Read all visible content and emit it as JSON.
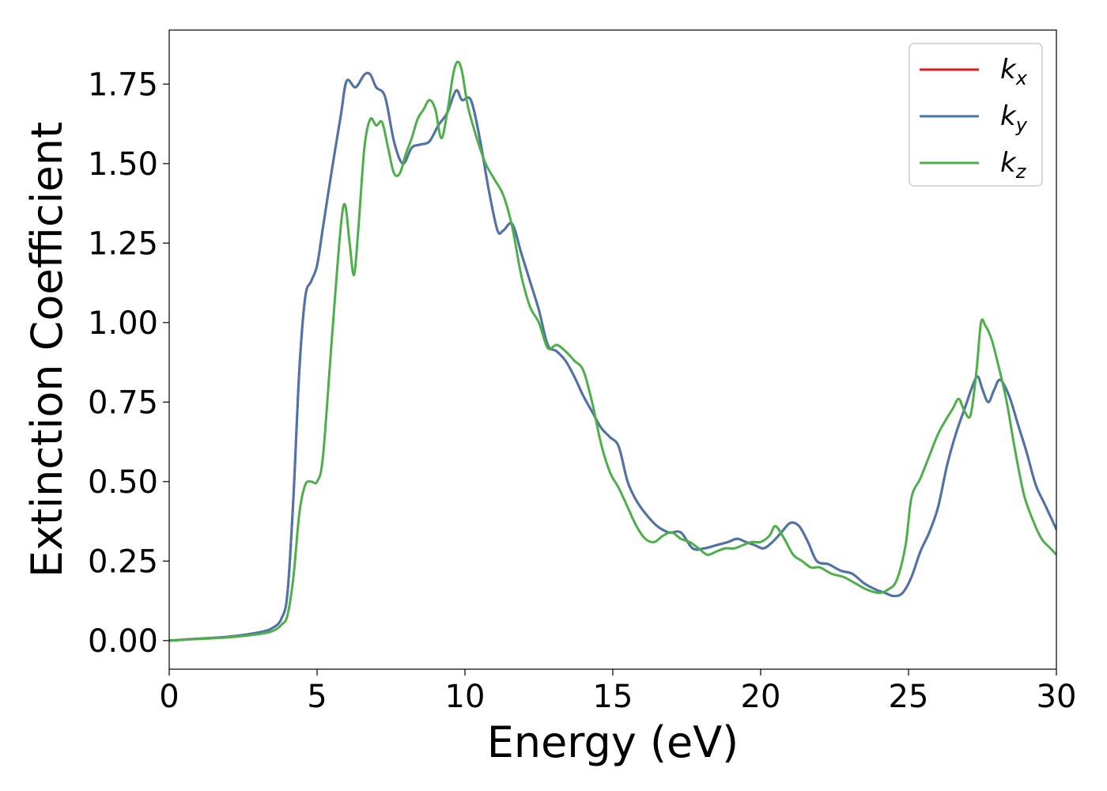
{
  "chart_data": {
    "type": "line",
    "title": "",
    "xlabel": "Energy (eV)",
    "ylabel": "Extinction Coefficient",
    "xlim": [
      0,
      30
    ],
    "ylim": [
      -0.09,
      1.92
    ],
    "xticks": [
      0,
      5,
      10,
      15,
      20,
      25,
      30
    ],
    "xtick_labels": [
      "0",
      "5",
      "10",
      "15",
      "20",
      "25",
      "30"
    ],
    "yticks": [
      0.0,
      0.25,
      0.5,
      0.75,
      1.0,
      1.25,
      1.5,
      1.75
    ],
    "ytick_labels": [
      "0.00",
      "0.25",
      "0.50",
      "0.75",
      "1.00",
      "1.25",
      "1.50",
      "1.75"
    ],
    "grid": false,
    "legend": {
      "placement": "top-right"
    },
    "series": [
      {
        "name_main": "k",
        "name_sub": "x",
        "color": "#e41a1c",
        "x": [
          0,
          1,
          2,
          3,
          3.5,
          3.8,
          4.0,
          4.2,
          4.4,
          4.6,
          4.8,
          5.0,
          5.2,
          5.5,
          5.8,
          6.0,
          6.3,
          6.6,
          6.8,
          7.0,
          7.3,
          7.6,
          7.9,
          8.2,
          8.5,
          8.8,
          9.1,
          9.4,
          9.7,
          9.9,
          10.2,
          10.5,
          10.8,
          11.1,
          11.3,
          11.6,
          11.9,
          12.2,
          12.5,
          12.8,
          13.1,
          13.4,
          13.7,
          14.0,
          14.3,
          14.6,
          14.9,
          15.2,
          15.5,
          15.8,
          16.1,
          16.5,
          16.9,
          17.3,
          17.7,
          18.1,
          18.5,
          18.9,
          19.2,
          19.5,
          19.8,
          20.1,
          20.4,
          20.7,
          21.0,
          21.3,
          21.6,
          21.9,
          22.3,
          22.7,
          23.1,
          23.5,
          23.9,
          24.2,
          24.5,
          24.8,
          25.1,
          25.4,
          25.7,
          26.0,
          26.3,
          26.6,
          26.9,
          27.2,
          27.35,
          27.5,
          27.7,
          27.9,
          28.1,
          28.4,
          28.7,
          29.0,
          29.3,
          29.6,
          30
        ],
        "y": [
          0.0,
          0.006,
          0.012,
          0.025,
          0.04,
          0.07,
          0.15,
          0.45,
          0.85,
          1.08,
          1.13,
          1.18,
          1.3,
          1.48,
          1.65,
          1.76,
          1.74,
          1.78,
          1.78,
          1.74,
          1.71,
          1.57,
          1.5,
          1.55,
          1.56,
          1.57,
          1.62,
          1.66,
          1.73,
          1.7,
          1.7,
          1.58,
          1.42,
          1.29,
          1.29,
          1.31,
          1.22,
          1.13,
          1.04,
          0.93,
          0.91,
          0.88,
          0.83,
          0.77,
          0.72,
          0.67,
          0.64,
          0.61,
          0.5,
          0.44,
          0.4,
          0.36,
          0.34,
          0.34,
          0.29,
          0.29,
          0.3,
          0.31,
          0.32,
          0.31,
          0.3,
          0.29,
          0.31,
          0.34,
          0.37,
          0.36,
          0.31,
          0.25,
          0.24,
          0.22,
          0.21,
          0.18,
          0.16,
          0.15,
          0.14,
          0.15,
          0.2,
          0.28,
          0.34,
          0.42,
          0.55,
          0.65,
          0.73,
          0.81,
          0.83,
          0.79,
          0.75,
          0.79,
          0.82,
          0.77,
          0.68,
          0.59,
          0.49,
          0.43,
          0.35
        ]
      },
      {
        "name_main": "k",
        "name_sub": "y",
        "color": "#4a76ab",
        "x": [
          0,
          1,
          2,
          3,
          3.5,
          3.8,
          4.0,
          4.2,
          4.4,
          4.6,
          4.8,
          5.0,
          5.2,
          5.5,
          5.8,
          6.0,
          6.3,
          6.6,
          6.8,
          7.0,
          7.3,
          7.6,
          7.9,
          8.2,
          8.5,
          8.8,
          9.1,
          9.4,
          9.7,
          9.9,
          10.2,
          10.5,
          10.8,
          11.1,
          11.3,
          11.6,
          11.9,
          12.2,
          12.5,
          12.8,
          13.1,
          13.4,
          13.7,
          14.0,
          14.3,
          14.6,
          14.9,
          15.2,
          15.5,
          15.8,
          16.1,
          16.5,
          16.9,
          17.3,
          17.7,
          18.1,
          18.5,
          18.9,
          19.2,
          19.5,
          19.8,
          20.1,
          20.4,
          20.7,
          21.0,
          21.3,
          21.6,
          21.9,
          22.3,
          22.7,
          23.1,
          23.5,
          23.9,
          24.2,
          24.5,
          24.8,
          25.1,
          25.4,
          25.7,
          26.0,
          26.3,
          26.6,
          26.9,
          27.2,
          27.35,
          27.5,
          27.7,
          27.9,
          28.1,
          28.4,
          28.7,
          29.0,
          29.3,
          29.6,
          30
        ],
        "y": [
          0.0,
          0.006,
          0.012,
          0.025,
          0.04,
          0.07,
          0.15,
          0.45,
          0.85,
          1.08,
          1.13,
          1.18,
          1.3,
          1.48,
          1.65,
          1.76,
          1.74,
          1.78,
          1.78,
          1.74,
          1.71,
          1.57,
          1.5,
          1.55,
          1.56,
          1.57,
          1.62,
          1.66,
          1.73,
          1.7,
          1.7,
          1.58,
          1.42,
          1.29,
          1.29,
          1.31,
          1.22,
          1.13,
          1.04,
          0.93,
          0.91,
          0.88,
          0.83,
          0.77,
          0.72,
          0.67,
          0.64,
          0.61,
          0.5,
          0.44,
          0.4,
          0.36,
          0.34,
          0.34,
          0.29,
          0.29,
          0.3,
          0.31,
          0.32,
          0.31,
          0.3,
          0.29,
          0.31,
          0.34,
          0.37,
          0.36,
          0.31,
          0.25,
          0.24,
          0.22,
          0.21,
          0.18,
          0.16,
          0.15,
          0.14,
          0.15,
          0.2,
          0.28,
          0.34,
          0.42,
          0.55,
          0.65,
          0.73,
          0.81,
          0.83,
          0.79,
          0.75,
          0.79,
          0.82,
          0.77,
          0.68,
          0.59,
          0.49,
          0.43,
          0.35
        ]
      },
      {
        "name_main": "k",
        "name_sub": "z",
        "color": "#4daf4a",
        "x": [
          0,
          1,
          2,
          3,
          3.5,
          3.8,
          4.0,
          4.2,
          4.4,
          4.6,
          4.8,
          5.0,
          5.2,
          5.5,
          5.8,
          5.95,
          6.1,
          6.25,
          6.4,
          6.6,
          6.8,
          7.0,
          7.2,
          7.4,
          7.6,
          7.8,
          8.0,
          8.2,
          8.4,
          8.6,
          8.8,
          9.0,
          9.2,
          9.4,
          9.6,
          9.75,
          9.9,
          10.1,
          10.4,
          10.7,
          11.0,
          11.3,
          11.6,
          11.9,
          12.2,
          12.5,
          12.8,
          13.1,
          13.4,
          13.7,
          14.0,
          14.3,
          14.6,
          14.9,
          15.2,
          15.5,
          15.8,
          16.1,
          16.4,
          16.7,
          17.0,
          17.3,
          17.6,
          17.9,
          18.2,
          18.5,
          18.8,
          19.1,
          19.4,
          19.7,
          20.0,
          20.3,
          20.5,
          20.8,
          21.1,
          21.4,
          21.7,
          22.0,
          22.4,
          22.8,
          23.2,
          23.6,
          24.0,
          24.3,
          24.6,
          24.9,
          25.1,
          25.4,
          25.7,
          26.0,
          26.3,
          26.5,
          26.7,
          26.9,
          27.1,
          27.3,
          27.45,
          27.6,
          27.8,
          28.0,
          28.3,
          28.6,
          28.9,
          29.2,
          29.5,
          29.8,
          30
        ],
        "y": [
          0.0,
          0.005,
          0.01,
          0.02,
          0.03,
          0.05,
          0.08,
          0.2,
          0.4,
          0.49,
          0.5,
          0.5,
          0.58,
          0.95,
          1.3,
          1.37,
          1.25,
          1.15,
          1.3,
          1.55,
          1.64,
          1.62,
          1.63,
          1.55,
          1.47,
          1.47,
          1.53,
          1.58,
          1.64,
          1.67,
          1.7,
          1.67,
          1.58,
          1.66,
          1.78,
          1.82,
          1.79,
          1.68,
          1.58,
          1.5,
          1.45,
          1.4,
          1.3,
          1.15,
          1.05,
          1.0,
          0.92,
          0.93,
          0.91,
          0.88,
          0.85,
          0.75,
          0.62,
          0.53,
          0.48,
          0.42,
          0.36,
          0.32,
          0.31,
          0.33,
          0.34,
          0.32,
          0.31,
          0.29,
          0.27,
          0.28,
          0.29,
          0.29,
          0.3,
          0.31,
          0.31,
          0.33,
          0.36,
          0.32,
          0.27,
          0.25,
          0.23,
          0.23,
          0.21,
          0.2,
          0.18,
          0.16,
          0.15,
          0.16,
          0.19,
          0.3,
          0.45,
          0.51,
          0.58,
          0.65,
          0.7,
          0.73,
          0.76,
          0.72,
          0.71,
          0.85,
          1.0,
          0.99,
          0.95,
          0.88,
          0.76,
          0.6,
          0.46,
          0.38,
          0.32,
          0.29,
          0.27
        ]
      }
    ]
  }
}
